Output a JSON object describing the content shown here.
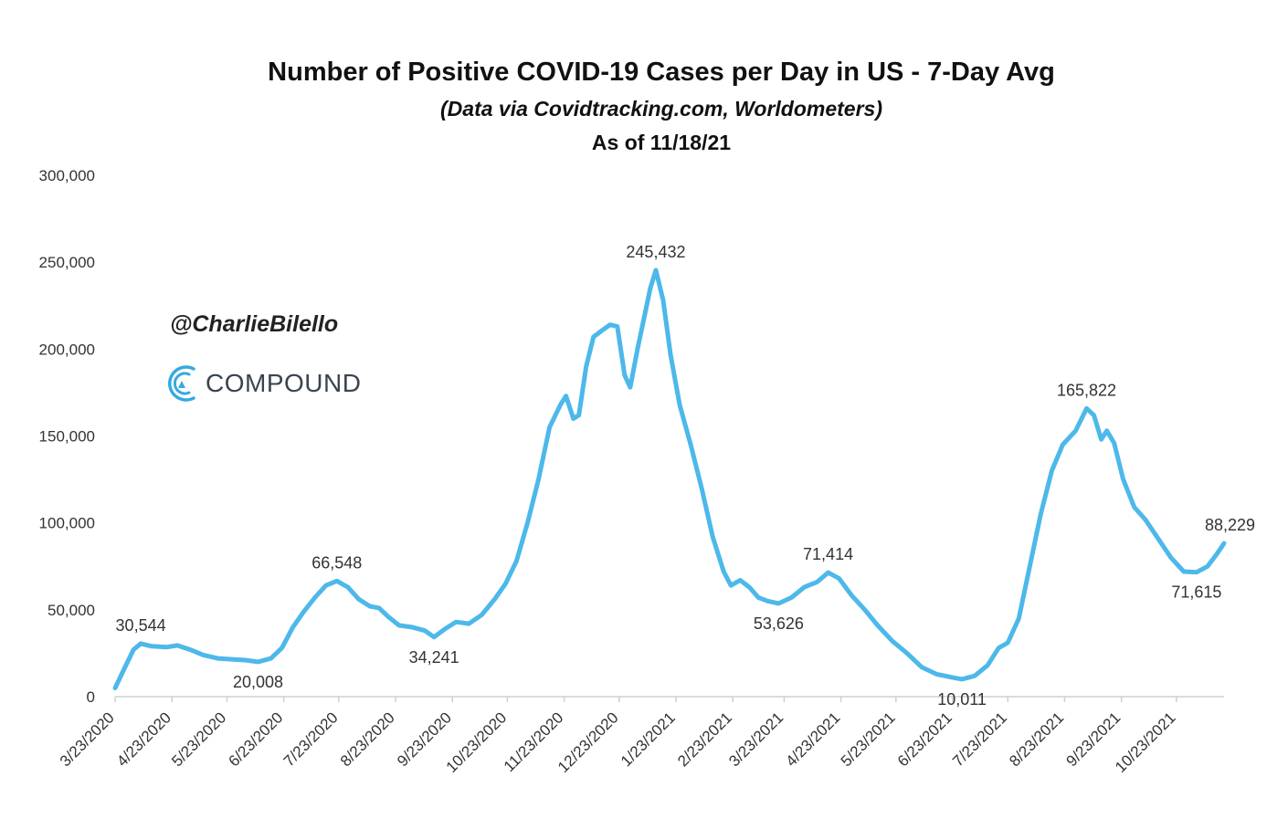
{
  "watermark": {
    "handle": "@CharlieBilello",
    "brand": "COMPOUND"
  },
  "chart_data": {
    "type": "line",
    "title": "Number of Positive COVID-19 Cases per Day in US - 7-Day Avg",
    "subtitle": "(Data via Covidtracking.com, Worldometers)",
    "subtitle_note": "As of 11/18/21",
    "xlabel": "",
    "ylabel": "",
    "ylim": [
      0,
      300000
    ],
    "yticks": [
      0,
      50000,
      100000,
      150000,
      200000,
      250000,
      300000
    ],
    "ytick_labels": [
      "0",
      "50,000",
      "100,000",
      "150,000",
      "200,000",
      "250,000",
      "300,000"
    ],
    "xlim": [
      "2020-03-23",
      "2021-11-18"
    ],
    "x_tick_labels": [
      "3/23/2020",
      "4/23/2020",
      "5/23/2020",
      "6/23/2020",
      "7/23/2020",
      "8/23/2020",
      "9/23/2020",
      "10/23/2020",
      "11/23/2020",
      "12/23/2020",
      "1/23/2021",
      "2/23/2021",
      "3/23/2021",
      "4/23/2021",
      "5/23/2021",
      "6/23/2021",
      "7/23/2021",
      "8/23/2021",
      "9/23/2021",
      "10/23/2021"
    ],
    "x_tick_dates": [
      "2020-03-23",
      "2020-04-23",
      "2020-05-23",
      "2020-06-23",
      "2020-07-23",
      "2020-08-23",
      "2020-09-23",
      "2020-10-23",
      "2020-11-23",
      "2020-12-23",
      "2021-01-23",
      "2021-02-23",
      "2021-03-23",
      "2021-04-23",
      "2021-05-23",
      "2021-06-23",
      "2021-07-23",
      "2021-08-23",
      "2021-09-23",
      "2021-10-23"
    ],
    "grid": false,
    "legend": "none",
    "series": [
      {
        "color": "#4db8ea",
        "points": [
          [
            "2020-03-23",
            5000
          ],
          [
            "2020-03-28",
            16000
          ],
          [
            "2020-04-02",
            27000
          ],
          [
            "2020-04-06",
            30544
          ],
          [
            "2020-04-12",
            29000
          ],
          [
            "2020-04-20",
            28500
          ],
          [
            "2020-04-26",
            29500
          ],
          [
            "2020-05-03",
            27000
          ],
          [
            "2020-05-10",
            24000
          ],
          [
            "2020-05-18",
            22000
          ],
          [
            "2020-05-26",
            21500
          ],
          [
            "2020-06-02",
            21000
          ],
          [
            "2020-06-09",
            20008
          ],
          [
            "2020-06-16",
            22000
          ],
          [
            "2020-06-22",
            28000
          ],
          [
            "2020-06-28",
            40000
          ],
          [
            "2020-07-04",
            49000
          ],
          [
            "2020-07-10",
            57000
          ],
          [
            "2020-07-16",
            64000
          ],
          [
            "2020-07-22",
            66548
          ],
          [
            "2020-07-28",
            63000
          ],
          [
            "2020-08-03",
            56000
          ],
          [
            "2020-08-09",
            52000
          ],
          [
            "2020-08-14",
            51000
          ],
          [
            "2020-08-19",
            46000
          ],
          [
            "2020-08-25",
            41000
          ],
          [
            "2020-09-01",
            40000
          ],
          [
            "2020-09-08",
            38000
          ],
          [
            "2020-09-13",
            34241
          ],
          [
            "2020-09-19",
            39000
          ],
          [
            "2020-09-25",
            43000
          ],
          [
            "2020-10-02",
            42000
          ],
          [
            "2020-10-09",
            47000
          ],
          [
            "2020-10-16",
            56000
          ],
          [
            "2020-10-22",
            65000
          ],
          [
            "2020-10-28",
            78000
          ],
          [
            "2020-11-03",
            100000
          ],
          [
            "2020-11-09",
            125000
          ],
          [
            "2020-11-15",
            155000
          ],
          [
            "2020-11-21",
            168000
          ],
          [
            "2020-11-24",
            173000
          ],
          [
            "2020-11-28",
            160000
          ],
          [
            "2020-12-01",
            162000
          ],
          [
            "2020-12-05",
            190000
          ],
          [
            "2020-12-09",
            207000
          ],
          [
            "2020-12-14",
            211000
          ],
          [
            "2020-12-18",
            214000
          ],
          [
            "2020-12-22",
            213000
          ],
          [
            "2020-12-26",
            185000
          ],
          [
            "2020-12-29",
            178000
          ],
          [
            "2021-01-02",
            200000
          ],
          [
            "2021-01-06",
            220000
          ],
          [
            "2021-01-09",
            235000
          ],
          [
            "2021-01-12",
            245432
          ],
          [
            "2021-01-16",
            228000
          ],
          [
            "2021-01-20",
            197000
          ],
          [
            "2021-01-25",
            168000
          ],
          [
            "2021-01-31",
            145000
          ],
          [
            "2021-02-06",
            120000
          ],
          [
            "2021-02-12",
            92000
          ],
          [
            "2021-02-18",
            72000
          ],
          [
            "2021-02-22",
            64000
          ],
          [
            "2021-02-27",
            67000
          ],
          [
            "2021-03-04",
            63000
          ],
          [
            "2021-03-09",
            57000
          ],
          [
            "2021-03-14",
            55000
          ],
          [
            "2021-03-20",
            53626
          ],
          [
            "2021-03-27",
            57000
          ],
          [
            "2021-04-03",
            63000
          ],
          [
            "2021-04-10",
            66000
          ],
          [
            "2021-04-16",
            71414
          ],
          [
            "2021-04-22",
            68000
          ],
          [
            "2021-04-29",
            58000
          ],
          [
            "2021-05-06",
            50000
          ],
          [
            "2021-05-13",
            41000
          ],
          [
            "2021-05-21",
            32000
          ],
          [
            "2021-05-29",
            25000
          ],
          [
            "2021-06-06",
            17000
          ],
          [
            "2021-06-14",
            13000
          ],
          [
            "2021-06-23",
            11000
          ],
          [
            "2021-06-28",
            10011
          ],
          [
            "2021-07-05",
            12000
          ],
          [
            "2021-07-12",
            18000
          ],
          [
            "2021-07-18",
            28000
          ],
          [
            "2021-07-23",
            31000
          ],
          [
            "2021-07-29",
            45000
          ],
          [
            "2021-08-04",
            75000
          ],
          [
            "2021-08-10",
            105000
          ],
          [
            "2021-08-16",
            130000
          ],
          [
            "2021-08-22",
            145000
          ],
          [
            "2021-08-29",
            153000
          ],
          [
            "2021-09-04",
            165822
          ],
          [
            "2021-09-08",
            162000
          ],
          [
            "2021-09-12",
            148000
          ],
          [
            "2021-09-15",
            153000
          ],
          [
            "2021-09-19",
            146000
          ],
          [
            "2021-09-24",
            125000
          ],
          [
            "2021-09-30",
            109000
          ],
          [
            "2021-10-06",
            102000
          ],
          [
            "2021-10-13",
            91000
          ],
          [
            "2021-10-20",
            80000
          ],
          [
            "2021-10-27",
            72000
          ],
          [
            "2021-11-03",
            71615
          ],
          [
            "2021-11-09",
            75000
          ],
          [
            "2021-11-14",
            82000
          ],
          [
            "2021-11-18",
            88229
          ]
        ]
      }
    ],
    "annotations": [
      {
        "text": "30,544",
        "x": "2020-04-06",
        "y": 30544,
        "side": "above"
      },
      {
        "text": "20,008",
        "x": "2020-06-09",
        "y": 20008,
        "side": "below"
      },
      {
        "text": "66,548",
        "x": "2020-07-22",
        "y": 66548,
        "side": "above"
      },
      {
        "text": "34,241",
        "x": "2020-09-13",
        "y": 34241,
        "side": "below"
      },
      {
        "text": "245,432",
        "x": "2021-01-12",
        "y": 245432,
        "side": "above"
      },
      {
        "text": "53,626",
        "x": "2021-03-20",
        "y": 53626,
        "side": "below"
      },
      {
        "text": "71,414",
        "x": "2021-04-16",
        "y": 71414,
        "side": "above"
      },
      {
        "text": "10,011",
        "x": "2021-06-28",
        "y": 10011,
        "side": "below"
      },
      {
        "text": "165,822",
        "x": "2021-09-04",
        "y": 165822,
        "side": "above"
      },
      {
        "text": "71,615",
        "x": "2021-11-03",
        "y": 71615,
        "side": "below"
      },
      {
        "text": "88,229",
        "x": "2021-11-18",
        "y": 88229,
        "side": "above"
      }
    ]
  }
}
